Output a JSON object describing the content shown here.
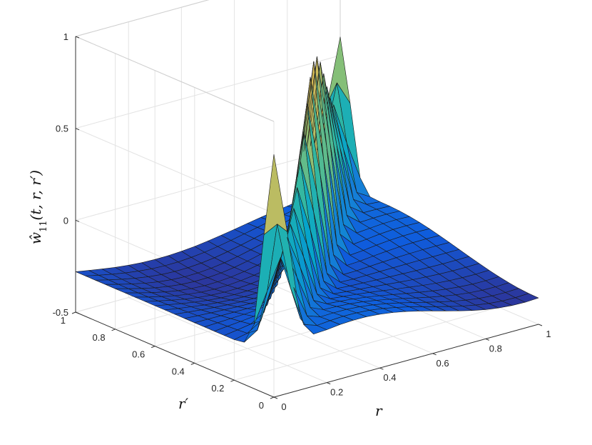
{
  "chart_data": {
    "type": "surface",
    "zlabel_base": "ŵ",
    "zlabel_sub": "11",
    "zlabel_args": "(t, r, r′)",
    "xlabel": "r",
    "ylabel": "r′",
    "xlim": [
      0,
      1
    ],
    "ylim": [
      0,
      1
    ],
    "zlim": [
      -0.5,
      1
    ],
    "xticks": [
      "0",
      "0.2",
      "0.4",
      "0.6",
      "0.8",
      "1"
    ],
    "yticks": [
      "0",
      "0.2",
      "0.4",
      "0.6",
      "0.8",
      "1"
    ],
    "zticks": [
      "-0.5",
      "0",
      "0.5",
      "1"
    ],
    "zticks_values": [
      -0.5,
      0,
      0.5,
      1
    ],
    "colormap": "parula",
    "colors": [
      "#352a87",
      "#0f5cdd",
      "#1481d6",
      "#06a4ca",
      "#2eb7a4",
      "#87bf77",
      "#d1bb59",
      "#fec832",
      "#f9fb0e"
    ],
    "grid": true,
    "grid_size": 21,
    "description_values": {
      "diagonal_peak_r0.5": 0.32,
      "diagonal_peak_r0.45": 0.1,
      "max_near": [
        0.58,
        0.58,
        0.8
      ],
      "corner_r0_rp0": 0.4,
      "corner_r1_rp1": 0.1,
      "off_diagonal_min": -0.45
    }
  }
}
